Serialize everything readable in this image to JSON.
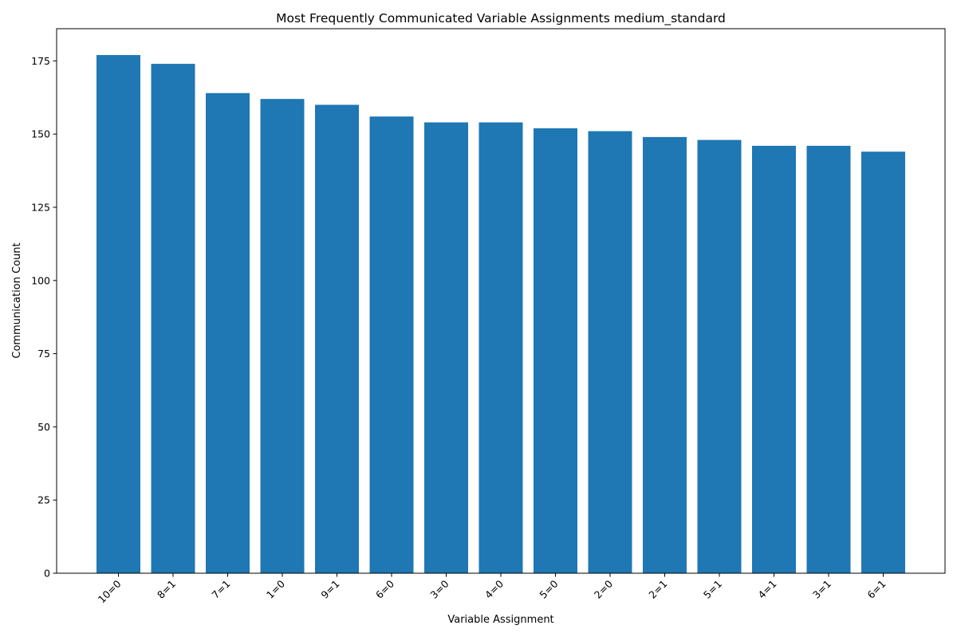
{
  "chart_data": {
    "type": "bar",
    "title": "Most Frequently Communicated Variable Assignments medium_standard",
    "xlabel": "Variable Assignment",
    "ylabel": "Communication Count",
    "categories": [
      "10=0",
      "8=1",
      "7=1",
      "1=0",
      "9=1",
      "6=0",
      "3=0",
      "4=0",
      "5=0",
      "2=0",
      "2=1",
      "5=1",
      "4=1",
      "3=1",
      "6=1"
    ],
    "values": [
      177,
      174,
      164,
      162,
      160,
      156,
      154,
      154,
      152,
      151,
      149,
      148,
      146,
      146,
      144
    ],
    "ylim": [
      0,
      186
    ],
    "yticks": [
      0,
      25,
      50,
      75,
      100,
      125,
      150,
      175
    ],
    "grid": false,
    "legend": "none",
    "bar_color": "#1f77b4"
  }
}
